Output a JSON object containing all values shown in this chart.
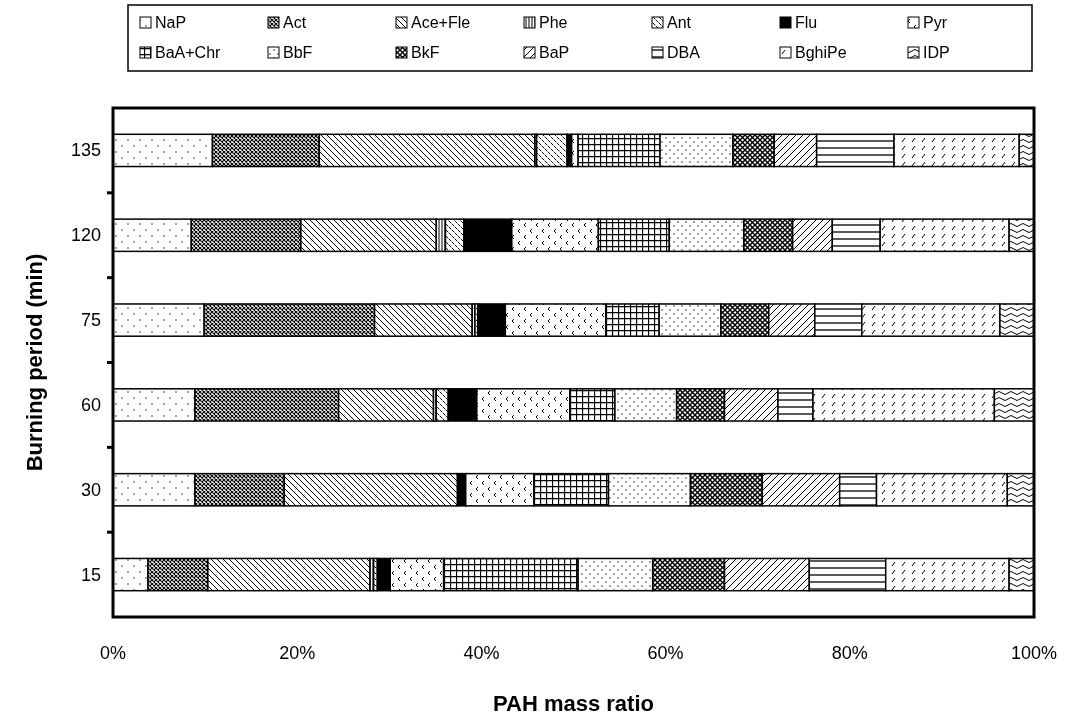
{
  "chart_data": {
    "type": "bar",
    "orientation": "horizontal",
    "stacked": true,
    "ylabel": "Burning period (min)",
    "xlabel": "PAH mass ratio",
    "categories": [
      "135",
      "120",
      "75",
      "60",
      "30",
      "15"
    ],
    "xlim": [
      0,
      100
    ],
    "xticks": [
      {
        "value": 0,
        "label": "0%"
      },
      {
        "value": 20,
        "label": "20%"
      },
      {
        "value": 40,
        "label": "40%"
      },
      {
        "value": 60,
        "label": "60%"
      },
      {
        "value": 80,
        "label": "80%"
      },
      {
        "value": 100,
        "label": "100%"
      }
    ],
    "legend": "top",
    "grid": false,
    "series": [
      {
        "name": "NaP",
        "color": "#000000",
        "values": [
          10.8,
          8.5,
          9.9,
          8.9,
          8.9,
          3.8
        ]
      },
      {
        "name": "Act",
        "color": "#000000",
        "values": [
          11.6,
          11.9,
          18.5,
          15.6,
          9.7,
          6.5
        ]
      },
      {
        "name": "Ace+Fle",
        "color": "#000000",
        "values": [
          23.4,
          14.7,
          10.6,
          10.3,
          18.8,
          17.6
        ]
      },
      {
        "name": "Phe",
        "color": "#000000",
        "values": [
          0.2,
          1.0,
          0.3,
          0.3,
          null,
          0.4
        ]
      },
      {
        "name": "Ant",
        "color": "#000000",
        "values": [
          3.3,
          2.0,
          0.3,
          1.3,
          null,
          0.4
        ]
      },
      {
        "name": "Flu",
        "color": "#000000",
        "values": [
          0.5,
          5.2,
          3.0,
          3.1,
          0.9,
          1.4
        ]
      },
      {
        "name": "Pyr",
        "color": "#000000",
        "values": [
          0.7,
          9.4,
          10.9,
          10.1,
          7.4,
          5.8
        ]
      },
      {
        "name": "BaA+Chr",
        "color": "#000000",
        "values": [
          8.9,
          7.7,
          5.8,
          4.9,
          8.1,
          14.6
        ]
      },
      {
        "name": "BbF",
        "color": "#000000",
        "values": [
          7.9,
          8.1,
          6.7,
          6.7,
          8.9,
          8.1
        ]
      },
      {
        "name": "BkF",
        "color": "#000000",
        "values": [
          4.5,
          5.3,
          5.2,
          5.2,
          7.8,
          7.8
        ]
      },
      {
        "name": "BaP",
        "color": "#000000",
        "values": [
          4.6,
          4.3,
          5.0,
          5.8,
          8.4,
          9.2
        ]
      },
      {
        "name": "DBA",
        "color": "#000000",
        "values": [
          8.4,
          5.2,
          5.1,
          3.8,
          4.0,
          8.3
        ]
      },
      {
        "name": "BghiPe",
        "color": "#000000",
        "values": [
          13.6,
          14.0,
          15.0,
          19.7,
          14.2,
          13.4
        ]
      },
      {
        "name": "IDP",
        "color": "#000000",
        "values": [
          1.6,
          2.7,
          3.7,
          4.3,
          2.9,
          2.7
        ]
      }
    ]
  }
}
